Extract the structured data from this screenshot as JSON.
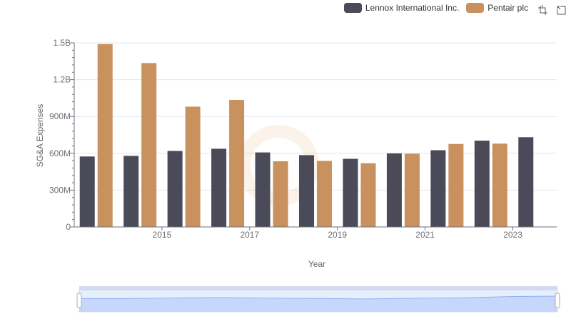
{
  "chart_data": {
    "type": "bar",
    "xlabel": "Year",
    "ylabel": "SG&A Expenses",
    "categories": [
      "2014",
      "2015",
      "2016",
      "2017",
      "2018",
      "2019",
      "2020",
      "2021",
      "2022",
      "2023",
      "2024"
    ],
    "x_tick_labels": [
      "2015",
      "2017",
      "2019",
      "2021",
      "2023"
    ],
    "y_tick_labels": [
      "0",
      "300M",
      "600M",
      "900M",
      "1.2B",
      "1.5B"
    ],
    "ylim": [
      0,
      1500000000
    ],
    "grid": true,
    "legend_position": "top-right",
    "series": [
      {
        "name": "Lennox International Inc.",
        "color": "#4a4a58",
        "values": [
          574000000,
          579000000,
          619000000,
          637000000,
          607000000,
          585000000,
          555000000,
          599000000,
          625000000,
          703000000,
          731000000
        ]
      },
      {
        "name": "Pentair plc",
        "color": "#c8915e",
        "values": [
          1490000000,
          1335000000,
          980000000,
          1035000000,
          535000000,
          538000000,
          519000000,
          597000000,
          676000000,
          679000000,
          null
        ]
      }
    ]
  }
}
